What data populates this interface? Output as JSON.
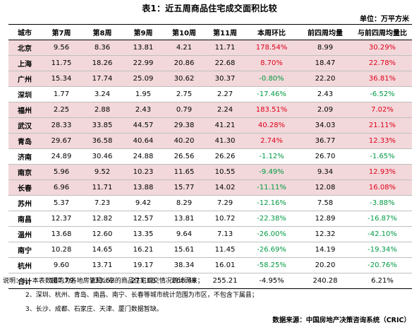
{
  "title": "表1：近五周商品住宅成交面积比较",
  "unit": "单位：万平方米",
  "headers": [
    "城市",
    "第7周",
    "第8周",
    "第9周",
    "第10周",
    "第11周",
    "本周环比",
    "前四周均量",
    "与前四周均量比"
  ],
  "rows": [
    {
      "city": "北京",
      "w7": "9.56",
      "w8": "8.36",
      "w9": "13.81",
      "w10": "4.21",
      "w11": "11.71",
      "wow": "178.54%",
      "wow_dir": "up",
      "avg4": "8.99",
      "vsavg": "30.29%",
      "vs_dir": "up",
      "highlight": true
    },
    {
      "city": "上海",
      "w7": "11.75",
      "w8": "18.26",
      "w9": "22.99",
      "w10": "20.86",
      "w11": "22.68",
      "wow": "8.70%",
      "wow_dir": "up",
      "avg4": "18.47",
      "vsavg": "22.78%",
      "vs_dir": "up",
      "highlight": true
    },
    {
      "city": "广州",
      "w7": "15.34",
      "w8": "17.74",
      "w9": "25.09",
      "w10": "30.62",
      "w11": "30.37",
      "wow": "-0.80%",
      "wow_dir": "down",
      "avg4": "22.20",
      "vsavg": "36.81%",
      "vs_dir": "up",
      "highlight": true
    },
    {
      "city": "深圳",
      "w7": "1.77",
      "w8": "3.24",
      "w9": "1.95",
      "w10": "2.75",
      "w11": "2.27",
      "wow": "-17.46%",
      "wow_dir": "down",
      "avg4": "2.43",
      "vsavg": "-6.52%",
      "vs_dir": "down",
      "highlight": false
    },
    {
      "city": "福州",
      "w7": "2.25",
      "w8": "2.88",
      "w9": "2.43",
      "w10": "0.79",
      "w11": "2.24",
      "wow": "183.51%",
      "wow_dir": "up",
      "avg4": "2.09",
      "vsavg": "7.02%",
      "vs_dir": "up",
      "highlight": true
    },
    {
      "city": "武汉",
      "w7": "28.33",
      "w8": "33.85",
      "w9": "44.57",
      "w10": "29.38",
      "w11": "41.21",
      "wow": "40.28%",
      "wow_dir": "up",
      "avg4": "34.03",
      "vsavg": "21.11%",
      "vs_dir": "up",
      "highlight": true
    },
    {
      "city": "青岛",
      "w7": "29.67",
      "w8": "36.58",
      "w9": "40.64",
      "w10": "40.20",
      "w11": "41.30",
      "wow": "2.74%",
      "wow_dir": "up",
      "avg4": "36.77",
      "vsavg": "12.33%",
      "vs_dir": "up",
      "highlight": true
    },
    {
      "city": "济南",
      "w7": "24.89",
      "w8": "30.46",
      "w9": "24.88",
      "w10": "26.56",
      "w11": "26.26",
      "wow": "-1.12%",
      "wow_dir": "down",
      "avg4": "26.70",
      "vsavg": "-1.65%",
      "vs_dir": "down",
      "highlight": false
    },
    {
      "city": "南京",
      "w7": "5.96",
      "w8": "9.52",
      "w9": "10.23",
      "w10": "11.65",
      "w11": "10.55",
      "wow": "-9.49%",
      "wow_dir": "down",
      "avg4": "9.34",
      "vsavg": "12.93%",
      "vs_dir": "up",
      "highlight": true
    },
    {
      "city": "长春",
      "w7": "6.96",
      "w8": "11.71",
      "w9": "13.88",
      "w10": "15.77",
      "w11": "14.02",
      "wow": "-11.11%",
      "wow_dir": "down",
      "avg4": "12.08",
      "vsavg": "16.08%",
      "vs_dir": "up",
      "highlight": true
    },
    {
      "city": "苏州",
      "w7": "5.37",
      "w8": "7.23",
      "w9": "9.42",
      "w10": "8.29",
      "w11": "7.29",
      "wow": "-12.16%",
      "wow_dir": "down",
      "avg4": "7.58",
      "vsavg": "-3.88%",
      "vs_dir": "down",
      "highlight": false
    },
    {
      "city": "南昌",
      "w7": "12.37",
      "w8": "12.82",
      "w9": "12.57",
      "w10": "13.81",
      "w11": "10.72",
      "wow": "-22.38%",
      "wow_dir": "down",
      "avg4": "12.89",
      "vsavg": "-16.87%",
      "vs_dir": "down",
      "highlight": false
    },
    {
      "city": "温州",
      "w7": "13.68",
      "w8": "12.60",
      "w9": "13.35",
      "w10": "9.64",
      "w11": "7.13",
      "wow": "-26.00%",
      "wow_dir": "down",
      "avg4": "12.32",
      "vsavg": "-42.10%",
      "vs_dir": "down",
      "highlight": false
    },
    {
      "city": "南宁",
      "w7": "10.28",
      "w8": "14.65",
      "w9": "16.21",
      "w10": "15.61",
      "w11": "11.45",
      "wow": "-26.69%",
      "wow_dir": "down",
      "avg4": "14.19",
      "vsavg": "-19.34%",
      "vs_dir": "down",
      "highlight": false
    },
    {
      "city": "杭州",
      "w7": "9.60",
      "w8": "13.71",
      "w9": "19.17",
      "w10": "38.34",
      "w11": "16.01",
      "wow": "-58.25%",
      "wow_dir": "down",
      "avg4": "20.20",
      "vsavg": "-20.76%",
      "vs_dir": "down",
      "highlight": false
    }
  ],
  "total": {
    "city": "合计",
    "w7": "187.79",
    "w8": "233.62",
    "w9": "271.18",
    "w10": "268.48",
    "w11": "255.21",
    "wow": "-4.95%",
    "avg4": "240.28",
    "vsavg": "6.21%"
  },
  "notes": [
    "说明：1、本表数据均为各地房管局公布的商品住宅成交情况统计而来；",
    "2、深圳、杭州、青岛、南昌、南宁、长春等城市统计范围为市区，不包含下属县；",
    "3、长沙、成都、石家庄、天津、厦门数据暂缺。"
  ],
  "source": "数据来源：中国房地产决策咨询系统（CRIC）",
  "colors": {
    "highlight_row": "#f2d8da",
    "up": "#e0001b",
    "down": "#009a44"
  }
}
